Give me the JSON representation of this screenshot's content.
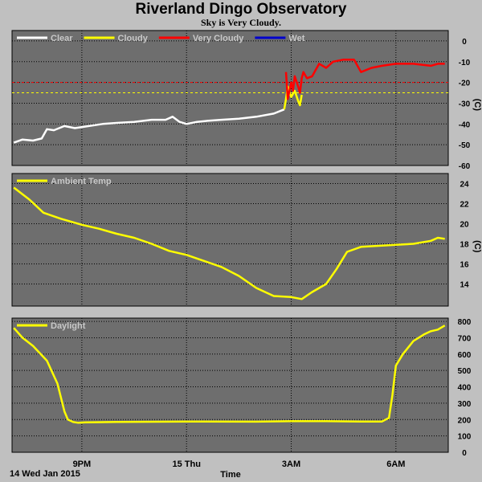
{
  "title": "Riverland Dingo Observatory",
  "subtitle": "Sky is Very Cloudy.",
  "footer_date": "14 Wed Jan 2015",
  "x_axis": {
    "label": "Time",
    "range_hours": [
      19.0,
      31.5
    ],
    "ticks": [
      {
        "t": 21,
        "label": "9PM"
      },
      {
        "t": 24,
        "label": "15 Thu"
      },
      {
        "t": 27,
        "label": "3AM"
      },
      {
        "t": 30,
        "label": "6AM"
      }
    ]
  },
  "colors": {
    "plot_bg": "#6e6e6e",
    "grid": "#000000",
    "clear": "#ffffff",
    "cloudy": "#ffff00",
    "very_cloudy": "#ff0000",
    "wet": "#0000cc"
  },
  "chart_data": [
    {
      "type": "line",
      "ylabel": "(C)",
      "ylim": [
        -60,
        5
      ],
      "yticks": [
        0,
        -10,
        -20,
        -30,
        -40,
        -50,
        -60
      ],
      "legend": [
        {
          "name": "Clear",
          "color": "#ffffff"
        },
        {
          "name": "Cloudy",
          "color": "#ffff00"
        },
        {
          "name": "Very Cloudy",
          "color": "#ff0000"
        },
        {
          "name": "Wet",
          "color": "#0000cc"
        }
      ],
      "thresholds": [
        {
          "value": -20,
          "color": "#ff0000"
        },
        {
          "value": -25,
          "color": "#ffff00"
        }
      ],
      "series": [
        {
          "name": "Clear",
          "color": "#ffffff",
          "x": [
            19.05,
            19.3,
            19.6,
            19.85,
            20.0,
            20.2,
            20.5,
            20.8,
            21.2,
            21.6,
            22.0,
            22.5,
            23.0,
            23.4,
            23.6,
            23.8,
            24.0,
            24.3,
            24.6,
            25.0,
            25.5,
            26.0,
            26.5,
            26.8
          ],
          "y": [
            -49,
            -47.5,
            -48,
            -47,
            -42.5,
            -43,
            -41,
            -42,
            -41,
            -40,
            -39.5,
            -39,
            -38,
            -38,
            -36.5,
            -39,
            -40,
            -39,
            -38.5,
            -38,
            -37.5,
            -36.5,
            -35,
            -33
          ]
        },
        {
          "name": "Cloudy",
          "color": "#ffff00",
          "x": [
            26.8,
            26.85,
            26.9,
            27.0,
            27.1,
            27.2,
            27.25,
            27.3
          ],
          "y": [
            -33,
            -28,
            -22,
            -27,
            -24,
            -29,
            -31,
            -26
          ]
        },
        {
          "name": "Very Cloudy",
          "color": "#ff0000",
          "x": [
            26.85,
            26.9,
            27.0,
            27.05,
            27.1,
            27.2,
            27.25,
            27.3,
            27.35,
            27.45,
            27.6,
            27.7,
            27.8,
            28.0,
            28.2,
            28.5,
            28.8,
            29.0,
            29.3,
            29.6,
            30.0,
            30.5,
            31.0,
            31.2,
            31.4
          ],
          "y": [
            -15,
            -28,
            -20,
            -24,
            -17,
            -22,
            -25,
            -18,
            -15,
            -18,
            -17,
            -14,
            -11,
            -13,
            -10,
            -9,
            -9,
            -15,
            -13,
            -12,
            -11,
            -11,
            -12,
            -11,
            -11
          ]
        },
        {
          "name": "Wet",
          "color": "#0000cc",
          "x": [],
          "y": []
        }
      ]
    },
    {
      "type": "line",
      "ylabel": "(C)",
      "ylim": [
        11.8,
        25
      ],
      "yticks": [
        24,
        22,
        20,
        18,
        16,
        14
      ],
      "legend": [
        {
          "name": "Ambient Temp",
          "color": "#ffff00"
        }
      ],
      "series": [
        {
          "name": "Ambient Temp",
          "color": "#ffff00",
          "x": [
            19.05,
            19.5,
            19.9,
            20.4,
            21.0,
            21.5,
            22.0,
            22.5,
            23.0,
            23.5,
            24.0,
            24.5,
            25.0,
            25.5,
            26.0,
            26.5,
            27.0,
            27.3,
            27.6,
            28.0,
            28.3,
            28.6,
            29.0,
            29.5,
            30.0,
            30.5,
            31.0,
            31.2,
            31.4
          ],
          "y": [
            23.6,
            22.4,
            21.1,
            20.5,
            19.9,
            19.5,
            19.0,
            18.6,
            18.0,
            17.3,
            16.9,
            16.3,
            15.7,
            14.8,
            13.6,
            12.8,
            12.7,
            12.5,
            13.2,
            14.0,
            15.5,
            17.2,
            17.7,
            17.8,
            17.9,
            18.0,
            18.3,
            18.6,
            18.5
          ]
        }
      ]
    },
    {
      "type": "line",
      "ylim": [
        0,
        820
      ],
      "yticks": [
        800,
        700,
        600,
        500,
        400,
        300,
        200,
        100,
        0
      ],
      "legend": [
        {
          "name": "Daylight",
          "color": "#ffff00"
        }
      ],
      "series": [
        {
          "name": "Daylight",
          "color": "#ffff00",
          "x": [
            19.05,
            19.3,
            19.6,
            20.0,
            20.3,
            20.5,
            20.6,
            20.75,
            20.9,
            21.1,
            22.0,
            24.0,
            26.0,
            27.0,
            28.0,
            29.0,
            29.6,
            29.8,
            29.9,
            30.0,
            30.2,
            30.5,
            30.8,
            31.0,
            31.2,
            31.4
          ],
          "y": [
            760,
            700,
            650,
            560,
            420,
            250,
            200,
            185,
            180,
            183,
            185,
            188,
            187,
            190,
            190,
            188,
            188,
            210,
            350,
            530,
            600,
            680,
            720,
            740,
            750,
            775
          ]
        }
      ]
    }
  ]
}
